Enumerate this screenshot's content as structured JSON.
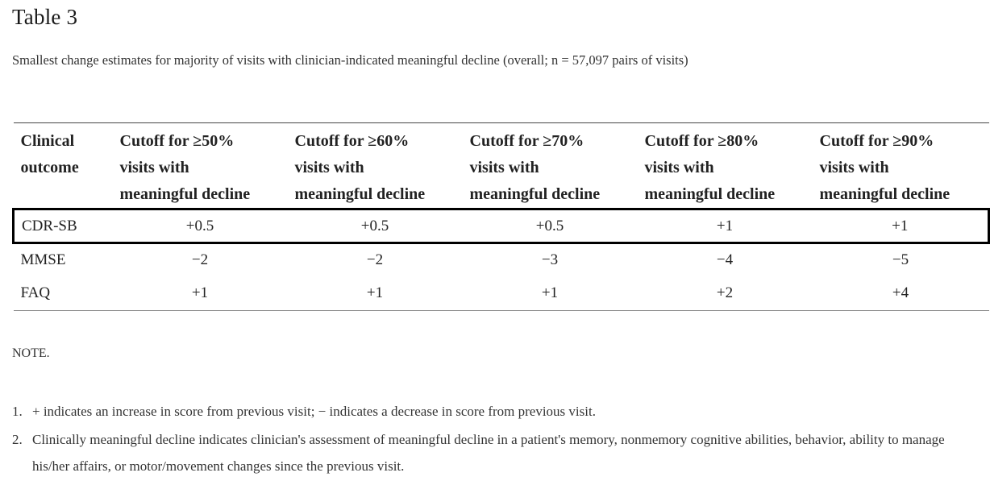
{
  "table_title": "Table 3",
  "caption": "Smallest change estimates for majority of visits with clinician-indicated meaningful decline (overall; n = 57,097 pairs of visits)",
  "headers": [
    {
      "lines": [
        "Clinical",
        "outcome"
      ]
    },
    {
      "lines": [
        "Cutoff for ≥50%",
        "visits with",
        "meaningful decline"
      ]
    },
    {
      "lines": [
        "Cutoff for ≥60%",
        "visits with",
        "meaningful decline"
      ]
    },
    {
      "lines": [
        "Cutoff for ≥70%",
        "visits with",
        "meaningful decline"
      ]
    },
    {
      "lines": [
        "Cutoff for ≥80%",
        "visits with",
        "meaningful decline"
      ]
    },
    {
      "lines": [
        "Cutoff for ≥90%",
        "visits with",
        "meaningful decline"
      ]
    }
  ],
  "rows": [
    {
      "outcome": "CDR-SB",
      "values": [
        "+0.5",
        "+0.5",
        "+0.5",
        "+1",
        "+1"
      ],
      "highlighted": true
    },
    {
      "outcome": "MMSE",
      "values": [
        "−2",
        "−2",
        "−3",
        "−4",
        "−5"
      ],
      "highlighted": false
    },
    {
      "outcome": "FAQ",
      "values": [
        "+1",
        "+1",
        "+1",
        "+2",
        "+4"
      ],
      "highlighted": false
    }
  ],
  "note_label": "NOTE.",
  "footnotes": [
    {
      "num": "1.",
      "text": "+ indicates an increase in score from previous visit; − indicates a decrease in score from previous visit."
    },
    {
      "num": "2.",
      "text": "Clinically meaningful decline indicates clinician's assessment of meaningful decline in a patient's memory, nonmemory cognitive abilities, behavior, ability to manage his/her affairs, or motor/movement changes since the previous visit."
    }
  ],
  "colors": {
    "text": "#222222",
    "highlight_border": "#000000"
  }
}
